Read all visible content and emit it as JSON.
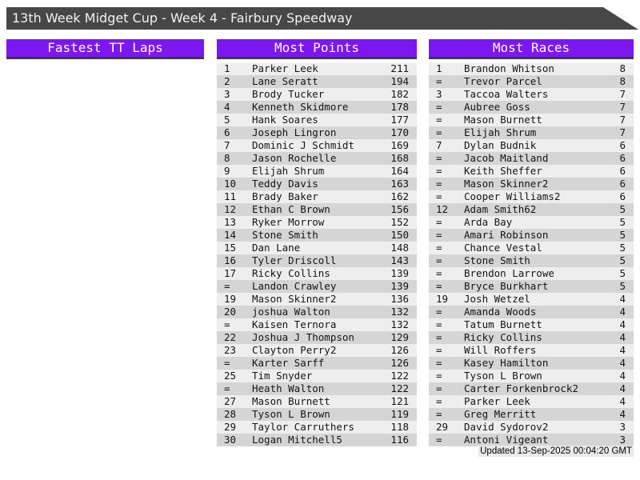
{
  "title": "13th Week Midget Cup - Week 4 - Fairbury Speedway",
  "footer": {
    "updated": "Updated 13-Sep-2025 00:04:20 GMT"
  },
  "colors": {
    "accent_purple": "#7d17f2",
    "titlebar_gray": "#474747",
    "header_border": "#3b3b3b",
    "row_light": "#eeeeee",
    "row_dark": "#d5d5d5"
  },
  "sections": [
    {
      "title": "Fastest TT Laps",
      "rows": []
    },
    {
      "title": "Most Points",
      "rows": [
        [
          "1",
          "Parker Leek",
          "211"
        ],
        [
          "2",
          "Lane Seratt",
          "194"
        ],
        [
          "3",
          "Brody Tucker",
          "182"
        ],
        [
          "4",
          "Kenneth Skidmore",
          "178"
        ],
        [
          "5",
          "Hank Soares",
          "177"
        ],
        [
          "6",
          "Joseph Lingron",
          "170"
        ],
        [
          "7",
          "Dominic J Schmidt",
          "169"
        ],
        [
          "8",
          "Jason Rochelle",
          "168"
        ],
        [
          "9",
          "Elijah Shrum",
          "164"
        ],
        [
          "10",
          "Teddy Davis",
          "163"
        ],
        [
          "11",
          "Brady Baker",
          "162"
        ],
        [
          "12",
          "Ethan C Brown",
          "156"
        ],
        [
          "13",
          "Ryker Morrow",
          "152"
        ],
        [
          "14",
          "Stone Smith",
          "150"
        ],
        [
          "15",
          "Dan Lane",
          "148"
        ],
        [
          "16",
          "Tyler Driscoll",
          "143"
        ],
        [
          "17",
          "Ricky Collins",
          "139"
        ],
        [
          "=",
          "Landon Crawley",
          "139"
        ],
        [
          "19",
          "Mason Skinner2",
          "136"
        ],
        [
          "20",
          "joshua Walton",
          "132"
        ],
        [
          "=",
          "Kaisen Ternora",
          "132"
        ],
        [
          "22",
          "Joshua J Thompson",
          "129"
        ],
        [
          "23",
          "Clayton Perry2",
          "126"
        ],
        [
          "=",
          "Karter Sarff",
          "126"
        ],
        [
          "25",
          "Tim Snyder",
          "122"
        ],
        [
          "=",
          "Heath Walton",
          "122"
        ],
        [
          "27",
          "Mason Burnett",
          "121"
        ],
        [
          "28",
          "Tyson L Brown",
          "119"
        ],
        [
          "29",
          "Taylor Carruthers",
          "118"
        ],
        [
          "30",
          "Logan Mitchell5",
          "116"
        ]
      ]
    },
    {
      "title": "Most Races",
      "rows": [
        [
          "1",
          "Brandon Whitson",
          "8"
        ],
        [
          "=",
          "Trevor Parcel",
          "8"
        ],
        [
          "3",
          "Taccoa Walters",
          "7"
        ],
        [
          "=",
          "Aubree Goss",
          "7"
        ],
        [
          "=",
          "Mason Burnett",
          "7"
        ],
        [
          "=",
          "Elijah Shrum",
          "7"
        ],
        [
          "7",
          "Dylan Budnik",
          "6"
        ],
        [
          "=",
          "Jacob Maitland",
          "6"
        ],
        [
          "=",
          "Keith Sheffer",
          "6"
        ],
        [
          "=",
          "Mason Skinner2",
          "6"
        ],
        [
          "=",
          "Cooper Williams2",
          "6"
        ],
        [
          "12",
          "Adam Smith62",
          "5"
        ],
        [
          "=",
          "Arda Bay",
          "5"
        ],
        [
          "=",
          "Amari Robinson",
          "5"
        ],
        [
          "=",
          "Chance Vestal",
          "5"
        ],
        [
          "=",
          "Stone Smith",
          "5"
        ],
        [
          "=",
          "Brendon Larrowe",
          "5"
        ],
        [
          "=",
          "Bryce Burkhart",
          "5"
        ],
        [
          "19",
          "Josh Wetzel",
          "4"
        ],
        [
          "=",
          "Amanda Woods",
          "4"
        ],
        [
          "=",
          "Tatum Burnett",
          "4"
        ],
        [
          "=",
          "Ricky Collins",
          "4"
        ],
        [
          "=",
          "Will Roffers",
          "4"
        ],
        [
          "=",
          "Kasey Hamilton",
          "4"
        ],
        [
          "=",
          "Tyson L Brown",
          "4"
        ],
        [
          "=",
          "Carter Forkenbrock2",
          "4"
        ],
        [
          "=",
          "Parker Leek",
          "4"
        ],
        [
          "=",
          "Greg Merritt",
          "4"
        ],
        [
          "29",
          "David Sydorov2",
          "3"
        ],
        [
          "=",
          "Antoni Vigeant",
          "3"
        ]
      ]
    }
  ]
}
